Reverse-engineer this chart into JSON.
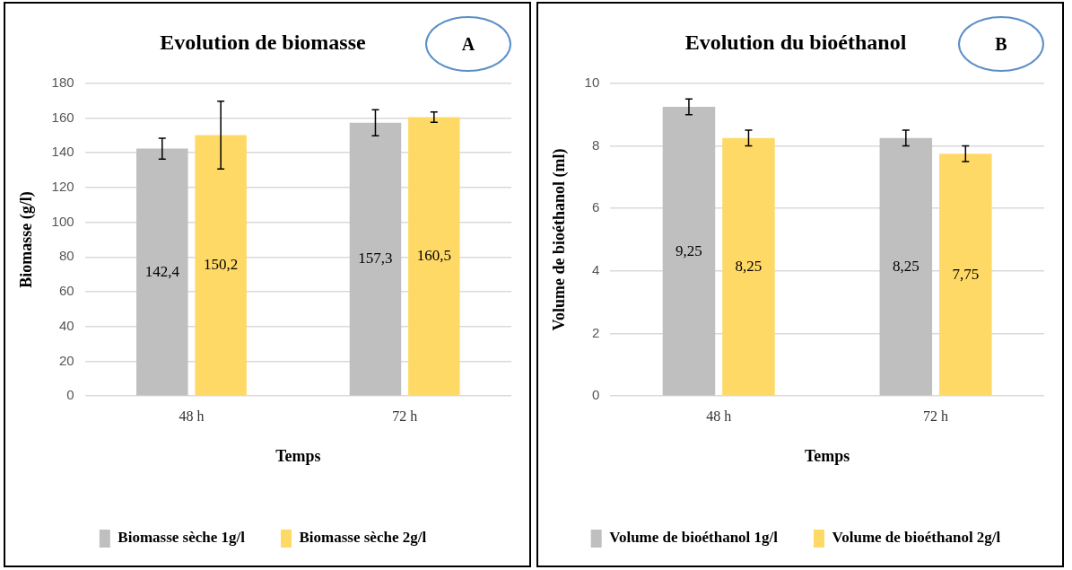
{
  "chart_data": [
    {
      "type": "bar",
      "title": "Evolution de biomasse",
      "xlabel": "Temps",
      "ylabel": "Biomasse (g/l)",
      "annotations": [
        "A"
      ],
      "categories": [
        "48 h",
        "72 h"
      ],
      "series": [
        {
          "name": "Biomasse sèche 1g/l",
          "color": "#bfbfbf",
          "values": [
            142.4,
            157.3
          ],
          "errors": [
            6,
            7.5
          ],
          "value_labels": [
            "142,4",
            "157,3"
          ]
        },
        {
          "name": "Biomasse sèche 2g/l",
          "color": "#ffd966",
          "values": [
            150.2,
            160.5
          ],
          "errors": [
            19.5,
            3
          ],
          "value_labels": [
            "150,2",
            "160,5"
          ]
        }
      ],
      "ylim": [
        0,
        180
      ],
      "yticks": [
        0,
        20,
        40,
        60,
        80,
        100,
        120,
        140,
        160,
        180
      ],
      "grid": "y",
      "legend": "bottom"
    },
    {
      "type": "bar",
      "title": "Evolution du bioéthanol",
      "xlabel": "Temps",
      "ylabel": "Volume de bioéthanol (ml)",
      "annotations": [
        "B"
      ],
      "categories": [
        "48 h",
        "72 h"
      ],
      "series": [
        {
          "name": "Volume de bioéthanol 1g/l",
          "color": "#bfbfbf",
          "values": [
            9.25,
            8.25
          ],
          "errors": [
            0.25,
            0.25
          ],
          "value_labels": [
            "9,25",
            "8,25"
          ]
        },
        {
          "name": "Volume de bioéthanol 2g/l",
          "color": "#ffd966",
          "values": [
            8.25,
            7.75
          ],
          "errors": [
            0.25,
            0.25
          ],
          "value_labels": [
            "8,25",
            "7,75"
          ]
        }
      ],
      "ylim": [
        0,
        10
      ],
      "yticks": [
        0,
        2,
        4,
        6,
        8,
        10
      ],
      "grid": "y",
      "legend": "bottom"
    }
  ]
}
